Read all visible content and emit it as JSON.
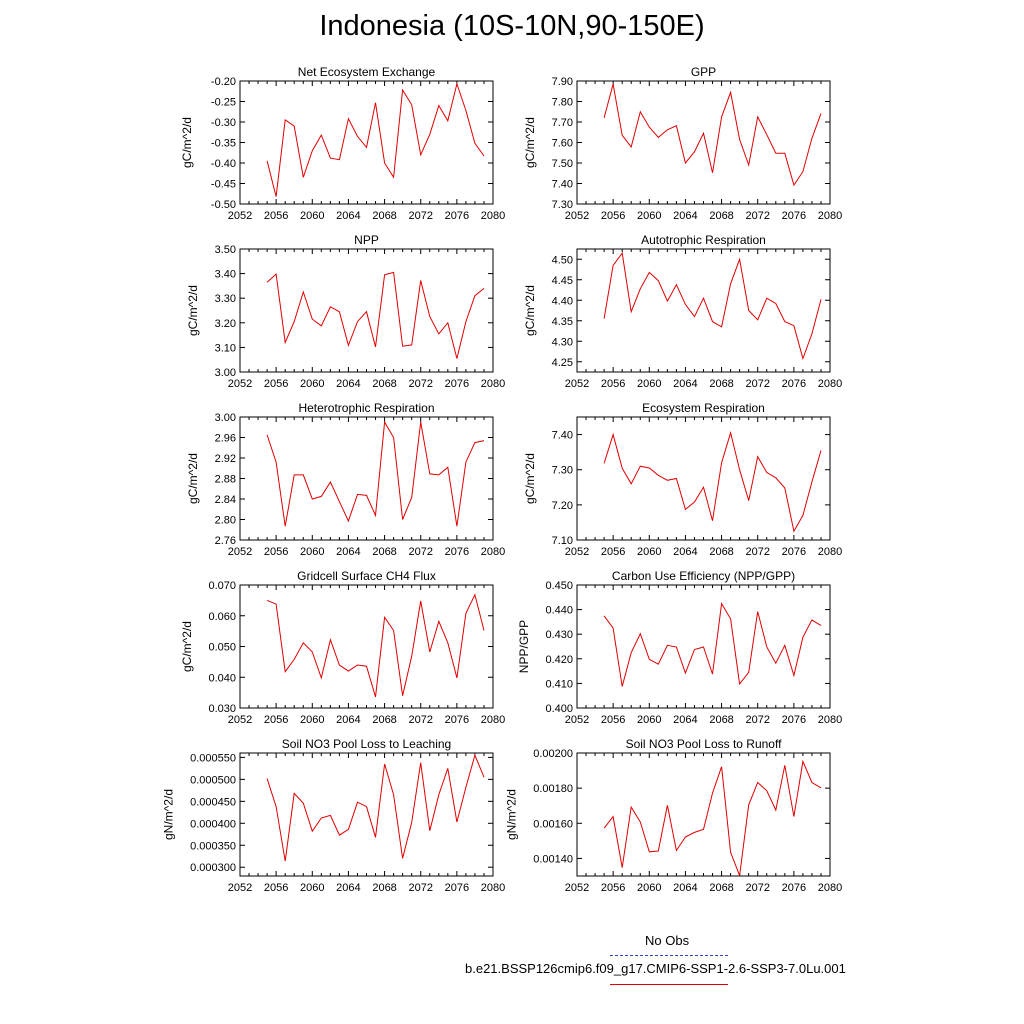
{
  "title": "Indonesia (10S-10N,90-150E)",
  "series_color": "#e00000",
  "obs_color": "#3a3acf",
  "legend": {
    "obs_label": "No Obs",
    "model_label": "b.e21.BSSP126cmip6.f09_g17.CMIP6-SSP1-2.6-SSP3-7.0Lu.001"
  },
  "chart_data": [
    {
      "type": "line",
      "title": "Net Ecosystem Exchange",
      "ylabel": "gC/m^2/d",
      "xlim": [
        2052,
        2080
      ],
      "xticks": [
        "2052",
        "2056",
        "2060",
        "2064",
        "2068",
        "2072",
        "2076",
        "2080"
      ],
      "ylim": [
        -0.5,
        -0.2
      ],
      "yticks": [
        "-0.50",
        "-0.45",
        "-0.40",
        "-0.35",
        "-0.30",
        "-0.25",
        "-0.20"
      ],
      "x": [
        2055,
        2056,
        2057,
        2058,
        2059,
        2060,
        2061,
        2062,
        2063,
        2064,
        2065,
        2066,
        2067,
        2068,
        2069,
        2070,
        2071,
        2072,
        2073,
        2074,
        2075,
        2076,
        2077,
        2078,
        2079
      ],
      "values": [
        -0.395,
        -0.482,
        -0.295,
        -0.31,
        -0.435,
        -0.37,
        -0.332,
        -0.388,
        -0.392,
        -0.292,
        -0.335,
        -0.362,
        -0.253,
        -0.4,
        -0.435,
        -0.222,
        -0.258,
        -0.38,
        -0.33,
        -0.26,
        -0.297,
        -0.207,
        -0.272,
        -0.352,
        -0.383
      ]
    },
    {
      "type": "line",
      "title": "GPP",
      "ylabel": "gC/m^2/d",
      "xlim": [
        2052,
        2080
      ],
      "xticks": [
        "2052",
        "2056",
        "2060",
        "2064",
        "2068",
        "2072",
        "2076",
        "2080"
      ],
      "ylim": [
        7.3,
        7.9
      ],
      "yticks": [
        "7.30",
        "7.40",
        "7.50",
        "7.60",
        "7.70",
        "7.80",
        "7.90"
      ],
      "x": [
        2055,
        2056,
        2057,
        2058,
        2059,
        2060,
        2061,
        2062,
        2063,
        2064,
        2065,
        2066,
        2067,
        2068,
        2069,
        2070,
        2071,
        2072,
        2073,
        2074,
        2075,
        2076,
        2077,
        2078,
        2079
      ],
      "values": [
        7.72,
        7.885,
        7.635,
        7.578,
        7.75,
        7.675,
        7.625,
        7.662,
        7.682,
        7.5,
        7.555,
        7.645,
        7.452,
        7.725,
        7.845,
        7.615,
        7.49,
        7.725,
        7.638,
        7.548,
        7.548,
        7.392,
        7.458,
        7.62,
        7.742
      ]
    },
    {
      "type": "line",
      "title": "NPP",
      "ylabel": "gC/m^2/d",
      "xlim": [
        2052,
        2080
      ],
      "xticks": [
        "2052",
        "2056",
        "2060",
        "2064",
        "2068",
        "2072",
        "2076",
        "2080"
      ],
      "ylim": [
        3.0,
        3.5
      ],
      "yticks": [
        "3.00",
        "3.10",
        "3.20",
        "3.30",
        "3.40",
        "3.50"
      ],
      "x": [
        2055,
        2056,
        2057,
        2058,
        2059,
        2060,
        2061,
        2062,
        2063,
        2064,
        2065,
        2066,
        2067,
        2068,
        2069,
        2070,
        2071,
        2072,
        2073,
        2074,
        2075,
        2076,
        2077,
        2078,
        2079
      ],
      "values": [
        3.365,
        3.398,
        3.12,
        3.205,
        3.325,
        3.215,
        3.188,
        3.265,
        3.245,
        3.108,
        3.205,
        3.245,
        3.102,
        3.395,
        3.405,
        3.105,
        3.11,
        3.372,
        3.225,
        3.155,
        3.2,
        3.055,
        3.205,
        3.31,
        3.34
      ]
    },
    {
      "type": "line",
      "title": "Autotrophic Respiration",
      "ylabel": "gC/m^2/d",
      "xlim": [
        2052,
        2080
      ],
      "xticks": [
        "2052",
        "2056",
        "2060",
        "2064",
        "2068",
        "2072",
        "2076",
        "2080"
      ],
      "ylim": [
        4.225,
        4.525
      ],
      "yticks": [
        "4.25",
        "4.30",
        "4.35",
        "4.40",
        "4.45",
        "4.50"
      ],
      "x": [
        2055,
        2056,
        2057,
        2058,
        2059,
        2060,
        2061,
        2062,
        2063,
        2064,
        2065,
        2066,
        2067,
        2068,
        2069,
        2070,
        2071,
        2072,
        2073,
        2074,
        2075,
        2076,
        2077,
        2078,
        2079
      ],
      "values": [
        4.355,
        4.485,
        4.515,
        4.372,
        4.428,
        4.468,
        4.448,
        4.398,
        4.438,
        4.39,
        4.36,
        4.405,
        4.348,
        4.335,
        4.44,
        4.5,
        4.375,
        4.352,
        4.405,
        4.392,
        4.348,
        4.338,
        4.258,
        4.318,
        4.402
      ]
    },
    {
      "type": "line",
      "title": "Heterotrophic Respiration",
      "ylabel": "gC/m^2/d",
      "xlim": [
        2052,
        2080
      ],
      "xticks": [
        "2052",
        "2056",
        "2060",
        "2064",
        "2068",
        "2072",
        "2076",
        "2080"
      ],
      "ylim": [
        2.76,
        3.0
      ],
      "yticks": [
        "2.76",
        "2.80",
        "2.84",
        "2.88",
        "2.92",
        "2.96",
        "3.00"
      ],
      "x": [
        2055,
        2056,
        2057,
        2058,
        2059,
        2060,
        2061,
        2062,
        2063,
        2064,
        2065,
        2066,
        2067,
        2068,
        2069,
        2070,
        2071,
        2072,
        2073,
        2074,
        2075,
        2076,
        2077,
        2078,
        2079
      ],
      "values": [
        2.965,
        2.912,
        2.787,
        2.887,
        2.887,
        2.84,
        2.845,
        2.873,
        2.835,
        2.797,
        2.849,
        2.847,
        2.808,
        2.99,
        2.96,
        2.8,
        2.843,
        2.99,
        2.889,
        2.887,
        2.902,
        2.787,
        2.912,
        2.95,
        2.954
      ]
    },
    {
      "type": "line",
      "title": "Ecosystem Respiration",
      "ylabel": "gC/m^2/d",
      "xlim": [
        2052,
        2080
      ],
      "xticks": [
        "2052",
        "2056",
        "2060",
        "2064",
        "2068",
        "2072",
        "2076",
        "2080"
      ],
      "ylim": [
        7.1,
        7.45
      ],
      "yticks": [
        "7.10",
        "7.20",
        "7.30",
        "7.40"
      ],
      "x": [
        2055,
        2056,
        2057,
        2058,
        2059,
        2060,
        2061,
        2062,
        2063,
        2064,
        2065,
        2066,
        2067,
        2068,
        2069,
        2070,
        2071,
        2072,
        2073,
        2074,
        2075,
        2076,
        2077,
        2078,
        2079
      ],
      "values": [
        7.318,
        7.4,
        7.304,
        7.26,
        7.31,
        7.305,
        7.284,
        7.27,
        7.275,
        7.187,
        7.208,
        7.25,
        7.155,
        7.32,
        7.405,
        7.3,
        7.212,
        7.337,
        7.292,
        7.277,
        7.248,
        7.125,
        7.17,
        7.265,
        7.355
      ]
    },
    {
      "type": "line",
      "title": "Gridcell Surface CH4 Flux",
      "ylabel": "gC/m^2/d",
      "xlim": [
        2052,
        2080
      ],
      "xticks": [
        "2052",
        "2056",
        "2060",
        "2064",
        "2068",
        "2072",
        "2076",
        "2080"
      ],
      "ylim": [
        0.03,
        0.07
      ],
      "yticks": [
        "0.030",
        "0.040",
        "0.050",
        "0.060",
        "0.070"
      ],
      "x": [
        2055,
        2056,
        2057,
        2058,
        2059,
        2060,
        2061,
        2062,
        2063,
        2064,
        2065,
        2066,
        2067,
        2068,
        2069,
        2070,
        2071,
        2072,
        2073,
        2074,
        2075,
        2076,
        2077,
        2078,
        2079
      ],
      "values": [
        0.065,
        0.0638,
        0.0418,
        0.0458,
        0.0512,
        0.0482,
        0.0398,
        0.0522,
        0.044,
        0.042,
        0.044,
        0.0436,
        0.0336,
        0.0595,
        0.0552,
        0.034,
        0.0468,
        0.0648,
        0.0482,
        0.0582,
        0.0512,
        0.0398,
        0.0608,
        0.0668,
        0.0552
      ]
    },
    {
      "type": "line",
      "title": "Carbon Use Efficiency (NPP/GPP)",
      "ylabel": "NPP/GPP",
      "xlim": [
        2052,
        2080
      ],
      "xticks": [
        "2052",
        "2056",
        "2060",
        "2064",
        "2068",
        "2072",
        "2076",
        "2080"
      ],
      "ylim": [
        0.4,
        0.45
      ],
      "yticks": [
        "0.400",
        "0.410",
        "0.420",
        "0.430",
        "0.440",
        "0.450"
      ],
      "x": [
        2055,
        2056,
        2057,
        2058,
        2059,
        2060,
        2061,
        2062,
        2063,
        2064,
        2065,
        2066,
        2067,
        2068,
        2069,
        2070,
        2071,
        2072,
        2073,
        2074,
        2075,
        2076,
        2077,
        2078,
        2079
      ],
      "values": [
        0.4375,
        0.4325,
        0.4088,
        0.4225,
        0.4302,
        0.4198,
        0.4178,
        0.4255,
        0.4248,
        0.4142,
        0.4238,
        0.4248,
        0.4138,
        0.4425,
        0.4362,
        0.4098,
        0.4145,
        0.4392,
        0.4248,
        0.4182,
        0.4255,
        0.4132,
        0.4288,
        0.4358,
        0.4335
      ]
    },
    {
      "type": "line",
      "title": "Soil NO3 Pool Loss to Leaching",
      "ylabel": "gN/m^2/d",
      "xlim": [
        2052,
        2080
      ],
      "xticks": [
        "2052",
        "2056",
        "2060",
        "2064",
        "2068",
        "2072",
        "2076",
        "2080"
      ],
      "ylim": [
        0.00028,
        0.00056
      ],
      "yticks": [
        "0.000300",
        "0.000350",
        "0.000400",
        "0.000450",
        "0.000500",
        "0.000550"
      ],
      "x": [
        2055,
        2056,
        2057,
        2058,
        2059,
        2060,
        2061,
        2062,
        2063,
        2064,
        2065,
        2066,
        2067,
        2068,
        2069,
        2070,
        2071,
        2072,
        2073,
        2074,
        2075,
        2076,
        2077,
        2078,
        2079
      ],
      "values": [
        0.000502,
        0.000438,
        0.000314,
        0.000468,
        0.000446,
        0.000382,
        0.000412,
        0.000418,
        0.000373,
        0.000386,
        0.000448,
        0.000438,
        0.000368,
        0.000535,
        0.000465,
        0.00032,
        0.000402,
        0.000538,
        0.000383,
        0.000465,
        0.000525,
        0.000403,
        0.000482,
        0.000555,
        0.000505
      ]
    },
    {
      "type": "line",
      "title": "Soil NO3 Pool Loss to Runoff",
      "ylabel": "gN/m^2/d",
      "xlim": [
        2052,
        2080
      ],
      "xticks": [
        "2052",
        "2056",
        "2060",
        "2064",
        "2068",
        "2072",
        "2076",
        "2080"
      ],
      "ylim": [
        0.0013,
        0.002
      ],
      "yticks": [
        "0.00140",
        "0.00160",
        "0.00180",
        "0.00200"
      ],
      "x": [
        2055,
        2056,
        2057,
        2058,
        2059,
        2060,
        2061,
        2062,
        2063,
        2064,
        2065,
        2066,
        2067,
        2068,
        2069,
        2070,
        2071,
        2072,
        2073,
        2074,
        2075,
        2076,
        2077,
        2078,
        2079
      ],
      "values": [
        0.001572,
        0.001638,
        0.001348,
        0.001692,
        0.001608,
        0.001438,
        0.001442,
        0.001702,
        0.001445,
        0.001522,
        0.001548,
        0.001565,
        0.001772,
        0.001922,
        0.001435,
        0.001302,
        0.001705,
        0.001832,
        0.001785,
        0.001675,
        0.00193,
        0.001638,
        0.001952,
        0.001832,
        0.001802
      ]
    }
  ]
}
